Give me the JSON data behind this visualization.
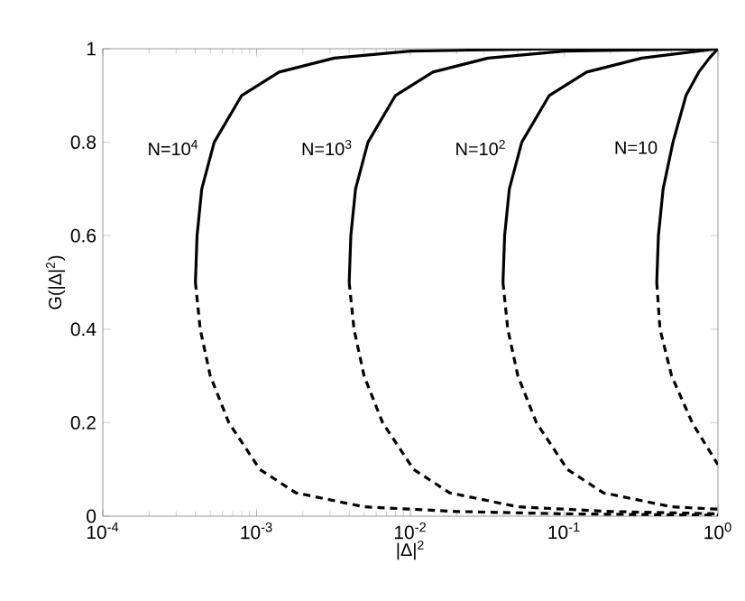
{
  "chart_data": {
    "type": "line",
    "xlabel": "|Δ|$^{2}$",
    "ylabel": "G(|Δ|$^{2}$)",
    "log": "x",
    "xlim": [
      0.0001,
      1
    ],
    "ylim": [
      0,
      1
    ],
    "xticks": [
      {
        "value": 0.0001,
        "label": "10$^{-4}$"
      },
      {
        "value": 0.001,
        "label": "10$^{-3}$"
      },
      {
        "value": 0.01,
        "label": "10$^{-2}$"
      },
      {
        "value": 0.1,
        "label": "10$^{-1}$"
      },
      {
        "value": 1,
        "label": "10$^{0}$"
      }
    ],
    "yticks": [
      0,
      0.2,
      0.4,
      0.6,
      0.8,
      1
    ],
    "grid": false,
    "legend": false,
    "marker": "none",
    "series": [
      {
        "name": "N=10$^{4}$",
        "color": "#000000",
        "line_style": "solid",
        "x": [
          0.0004,
          0.00041,
          0.00044,
          0.00053,
          0.0008,
          0.0014,
          0.0032,
          0.01,
          0.1,
          1
        ],
        "values": [
          0.5,
          0.6,
          0.7,
          0.8,
          0.9,
          0.95,
          0.98,
          0.995,
          1,
          1
        ]
      },
      {
        "color": "#000000",
        "line_style": "dashed",
        "x": [
          0.0004,
          0.00043,
          0.0005,
          0.00066,
          0.00105,
          0.0018,
          0.005,
          0.02,
          0.1,
          1
        ],
        "values": [
          0.5,
          0.4,
          0.3,
          0.2,
          0.1,
          0.05,
          0.02,
          0.01,
          0.005,
          0.002
        ]
      },
      {
        "name": "N=10$^{3}$",
        "color": "#000000",
        "line_style": "solid",
        "x": [
          0.004,
          0.0041,
          0.0044,
          0.0053,
          0.008,
          0.014,
          0.032,
          0.1,
          1
        ],
        "values": [
          0.5,
          0.6,
          0.7,
          0.8,
          0.9,
          0.95,
          0.98,
          0.995,
          1
        ]
      },
      {
        "color": "#000000",
        "line_style": "dashed",
        "x": [
          0.004,
          0.0043,
          0.005,
          0.0066,
          0.0105,
          0.018,
          0.05,
          0.2,
          1
        ],
        "values": [
          0.5,
          0.4,
          0.3,
          0.2,
          0.1,
          0.05,
          0.02,
          0.01,
          0.005
        ]
      },
      {
        "name": "N=10$^{2}$",
        "color": "#000000",
        "line_style": "solid",
        "x": [
          0.04,
          0.041,
          0.044,
          0.053,
          0.08,
          0.14,
          0.32,
          1
        ],
        "values": [
          0.5,
          0.6,
          0.7,
          0.8,
          0.9,
          0.95,
          0.98,
          1
        ]
      },
      {
        "color": "#000000",
        "line_style": "dashed",
        "x": [
          0.04,
          0.043,
          0.05,
          0.066,
          0.105,
          0.18,
          0.5,
          1
        ],
        "values": [
          0.5,
          0.4,
          0.3,
          0.2,
          0.1,
          0.05,
          0.02,
          0.015
        ]
      },
      {
        "name": "N=10",
        "color": "#000000",
        "line_style": "solid",
        "x": [
          0.4,
          0.41,
          0.44,
          0.51,
          0.62,
          0.75,
          0.88,
          1
        ],
        "values": [
          0.5,
          0.6,
          0.7,
          0.8,
          0.9,
          0.95,
          0.98,
          1
        ]
      },
      {
        "color": "#000000",
        "line_style": "dashed",
        "x": [
          0.4,
          0.42,
          0.5,
          0.68,
          1
        ],
        "values": [
          0.5,
          0.4,
          0.3,
          0.2,
          0.11
        ]
      }
    ]
  }
}
